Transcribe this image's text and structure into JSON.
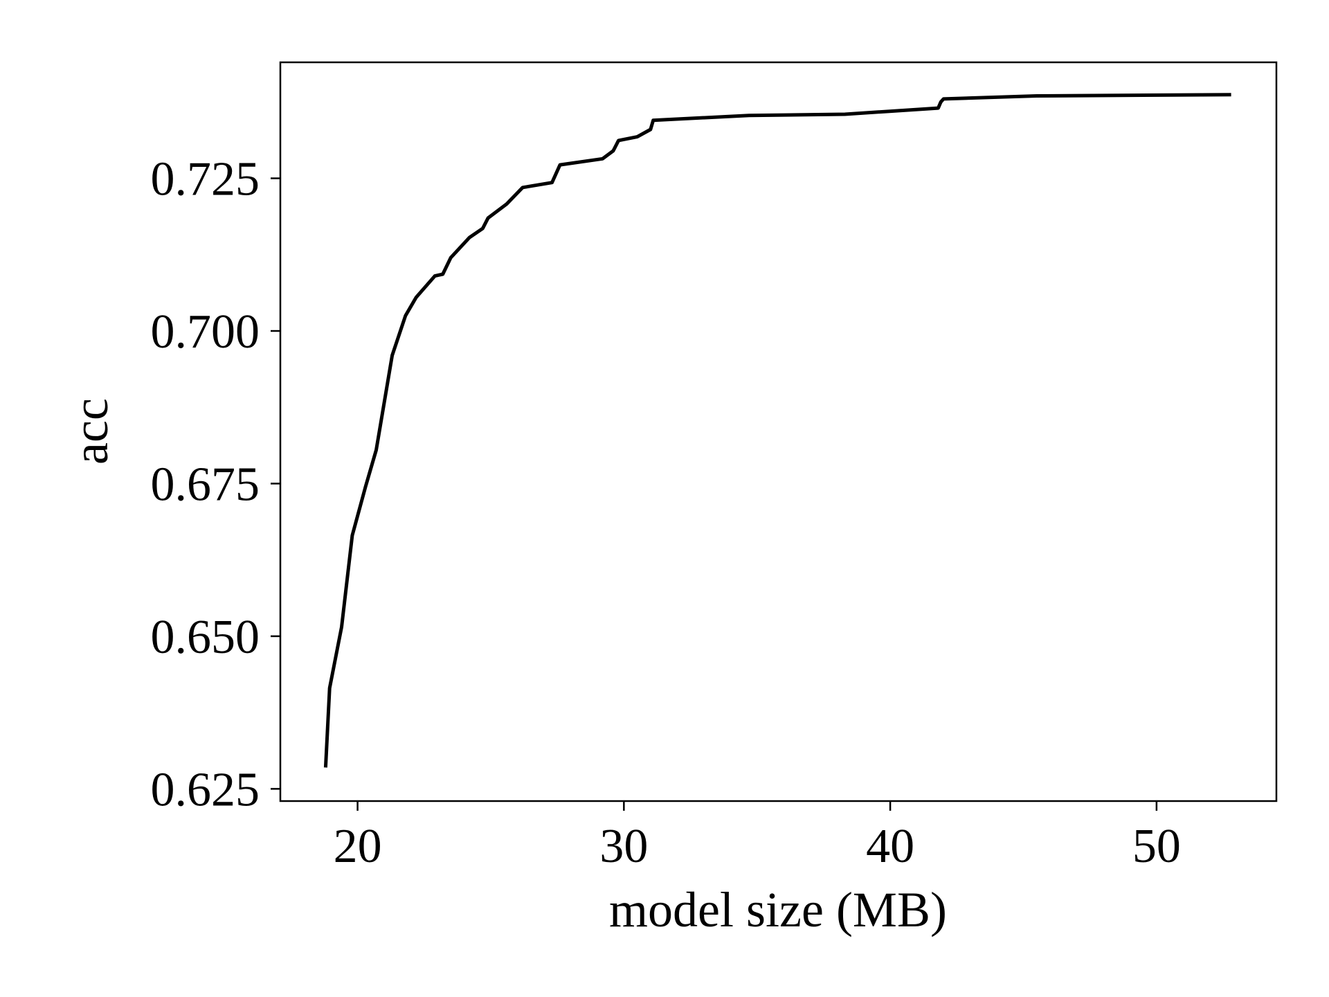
{
  "chart_data": {
    "type": "line",
    "title": "",
    "xlabel": "model size (MB)",
    "ylabel": "acc",
    "xlim": [
      17.1,
      54.5
    ],
    "ylim": [
      0.623,
      0.744
    ],
    "x_ticks": [
      20,
      30,
      40,
      50
    ],
    "x_tick_labels": [
      "20",
      "30",
      "40",
      "50"
    ],
    "y_ticks": [
      0.625,
      0.65,
      0.675,
      0.7,
      0.725
    ],
    "y_tick_labels": [
      "0.625",
      "0.650",
      "0.675",
      "0.700",
      "0.725"
    ],
    "grid": false,
    "legend": "none",
    "line_color": "#000000",
    "series": [
      {
        "x": [
          18.8,
          18.95,
          19.4,
          19.8,
          20.3,
          20.7,
          21.3,
          21.8,
          22.2,
          22.9,
          23.2,
          23.5,
          24.2,
          24.7,
          24.9,
          25.6,
          26.2,
          27.3,
          27.6,
          29.2,
          29.6,
          29.8,
          30.5,
          31.0,
          31.1,
          34.7,
          38.3,
          41.8,
          41.9,
          42.0,
          45.5,
          52.8
        ],
        "y": [
          0.6285,
          0.6415,
          0.6515,
          0.6665,
          0.6745,
          0.6805,
          0.696,
          0.7025,
          0.7055,
          0.709,
          0.7093,
          0.712,
          0.7153,
          0.7168,
          0.7185,
          0.7208,
          0.7235,
          0.7243,
          0.7272,
          0.7282,
          0.7295,
          0.7312,
          0.7318,
          0.733,
          0.7345,
          0.7353,
          0.7355,
          0.7365,
          0.7375,
          0.738,
          0.7385,
          0.7387
        ]
      }
    ]
  }
}
